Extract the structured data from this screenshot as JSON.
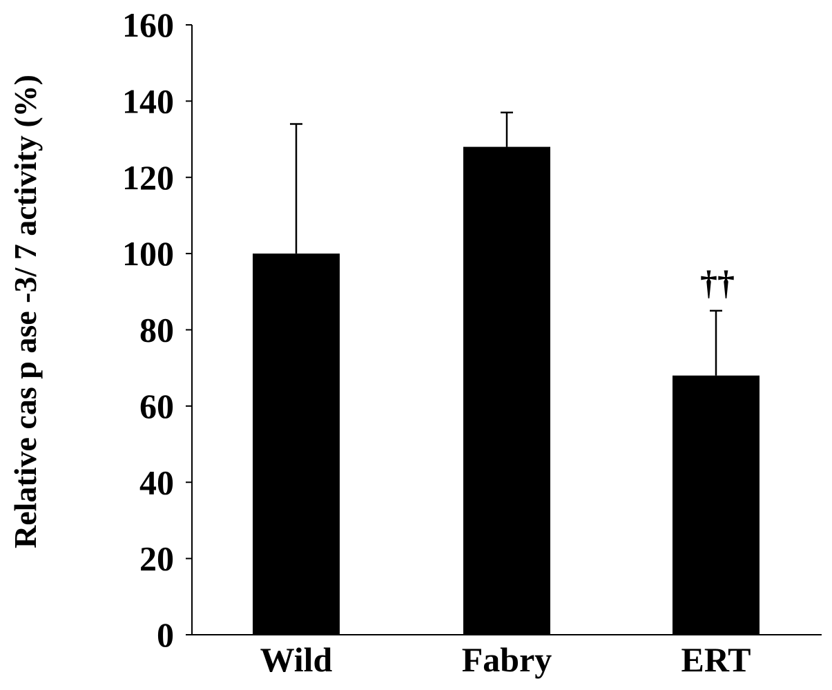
{
  "chart_data": {
    "type": "bar",
    "title": "",
    "xlabel": "",
    "ylabel": "Relative cas p ase -3/ 7 activity (%)",
    "categories": [
      "Wild",
      "Fabry",
      "ERT"
    ],
    "series": [
      {
        "values": [
          100,
          128,
          68
        ],
        "error_upper": [
          34,
          9,
          17
        ]
      }
    ],
    "ylim": [
      0,
      160
    ],
    "yticks": [
      0,
      20,
      40,
      60,
      80,
      100,
      120,
      140,
      160
    ],
    "grid": false,
    "annotations": [
      {
        "category": "ERT",
        "text": "††"
      }
    ],
    "colors": {
      "bar": "#000000",
      "axis": "#000000",
      "background": "#ffffff"
    }
  }
}
